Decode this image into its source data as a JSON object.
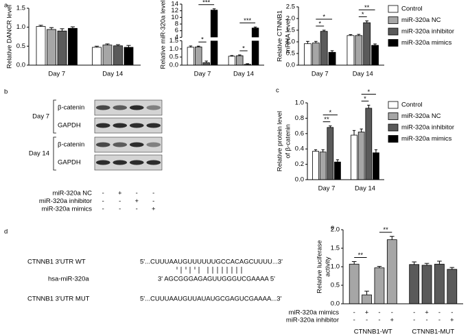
{
  "panel_labels_note_free": null,
  "chart_data": [
    {
      "type": "bar",
      "panel": "a",
      "ylabel": "Relative DANCR level",
      "categories": [
        "Day 7",
        "Day 14"
      ],
      "series": [
        {
          "color": "#ffffff",
          "values": [
            1.02,
            0.47
          ],
          "errors": [
            0.03,
            0.03
          ]
        },
        {
          "color": "#a6a6a6",
          "values": [
            0.94,
            0.53
          ],
          "errors": [
            0.05,
            0.03
          ]
        },
        {
          "color": "#5a5a5a",
          "values": [
            0.9,
            0.51
          ],
          "errors": [
            0.06,
            0.03
          ]
        },
        {
          "color": "#000000",
          "values": [
            0.97,
            0.47
          ],
          "errors": [
            0.04,
            0.05
          ]
        }
      ],
      "ylim": [
        0,
        1.5
      ],
      "yticks": [
        {
          "value": 0,
          "label": "0.0"
        },
        0.5,
        {
          "value": 1,
          "label": "1.0"
        },
        1.5
      ]
    },
    {
      "type": "bar",
      "ylabel": "Relative miR-320a level",
      "categories": [
        "Day 7",
        "Day 14"
      ],
      "series": [
        {
          "color": "#ffffff",
          "values": [
            1.1,
            0.55
          ],
          "errors": [
            0.08,
            0.04
          ]
        },
        {
          "color": "#a6a6a6",
          "values": [
            1.12,
            0.58
          ],
          "errors": [
            0.05,
            0.05
          ]
        },
        {
          "color": "#5a5a5a",
          "values": [
            0.15,
            0.05
          ],
          "errors": [
            0.1,
            0.04
          ]
        },
        {
          "color": "#000000",
          "values": [
            12.2,
            6.8
          ],
          "errors": [
            0.4,
            0.3
          ]
        }
      ],
      "ysegments": [
        {
          "ylim": [
            0,
            1.5
          ],
          "yticks": [
            {
              "value": 0,
              "label": "0.0"
            },
            0.5,
            {
              "value": 1,
              "label": "1.0"
            },
            1.5
          ]
        },
        {
          "ylim": [
            4,
            14
          ],
          "yticks": [
            4,
            6,
            8,
            10,
            12,
            14
          ]
        }
      ],
      "annotations": [
        {
          "text": "*",
          "category": 0,
          "from": 1,
          "to": 2
        },
        {
          "text": "***",
          "category": 0,
          "from": 1,
          "to": 3
        },
        {
          "text": "*",
          "category": 1,
          "from": 1,
          "to": 2
        },
        {
          "text": "***",
          "category": 1,
          "from": 1,
          "to": 3
        }
      ]
    },
    {
      "type": "bar",
      "ylabel": [
        "Relative CTNNB1",
        "mRNA level"
      ],
      "categories": [
        "Day 7",
        "Day 14"
      ],
      "series": [
        {
          "name": "Control",
          "color": "#ffffff",
          "values": [
            0.92,
            1.27
          ],
          "errors": [
            0.1,
            0.04
          ]
        },
        {
          "name": "miR-320a NC",
          "color": "#a6a6a6",
          "values": [
            0.95,
            1.27
          ],
          "errors": [
            0.07,
            0.05
          ]
        },
        {
          "name": "miR-320a inhibitor",
          "color": "#5a5a5a",
          "values": [
            1.45,
            1.82
          ],
          "errors": [
            0.05,
            0.08
          ]
        },
        {
          "name": "miR-320a mimics",
          "color": "#000000",
          "values": [
            0.55,
            0.85
          ],
          "errors": [
            0.07,
            0.06
          ]
        }
      ],
      "ylim": [
        0,
        2.5
      ],
      "yticks": [
        {
          "value": 0,
          "label": "0.0"
        },
        0.5,
        {
          "value": 1,
          "label": "1.0"
        },
        1.5,
        {
          "value": 2,
          "label": "2.0"
        },
        2.5
      ],
      "legend": "right",
      "annotations": [
        {
          "text": "*",
          "category": 0,
          "from": 1,
          "to": 2
        },
        {
          "text": "*",
          "category": 0,
          "from": 1,
          "to": 3
        },
        {
          "text": "*",
          "category": 1,
          "from": 1,
          "to": 2
        },
        {
          "text": "**",
          "category": 1,
          "from": 1,
          "to": 3
        }
      ]
    },
    {
      "type": "bar",
      "panel": "c",
      "ylabel": [
        "Relative protein level",
        "of β-catenin"
      ],
      "categories": [
        "Day 7",
        "Day 14"
      ],
      "series": [
        {
          "name": "Control",
          "color": "#ffffff",
          "values": [
            0.37,
            0.58
          ],
          "errors": [
            0.02,
            0.06
          ]
        },
        {
          "name": "miR-320a NC",
          "color": "#a6a6a6",
          "values": [
            0.36,
            0.62
          ],
          "errors": [
            0.03,
            0.04
          ]
        },
        {
          "name": "miR-320a inhibitor",
          "color": "#5a5a5a",
          "values": [
            0.68,
            0.93
          ],
          "errors": [
            0.02,
            0.04
          ]
        },
        {
          "name": "miR-320a mimics",
          "color": "#000000",
          "values": [
            0.23,
            0.35
          ],
          "errors": [
            0.03,
            0.04
          ]
        }
      ],
      "ylim": [
        0,
        1
      ],
      "yticks": [
        {
          "value": 0,
          "label": "0.0"
        },
        0.2,
        0.4,
        0.6,
        0.8,
        {
          "value": 1,
          "label": "1.0"
        }
      ],
      "legend": "right",
      "annotations": [
        {
          "text": "**",
          "category": 0,
          "from": 1,
          "to": 2
        },
        {
          "text": "*",
          "category": 0,
          "from": 1,
          "to": 3
        },
        {
          "text": "*",
          "category": 1,
          "from": 1,
          "to": 2
        },
        {
          "text": "*",
          "category": 1,
          "from": 1,
          "to": 3
        }
      ]
    },
    {
      "type": "bar",
      "panel": "e",
      "ylabel": [
        "Relative luciferase",
        "activity"
      ],
      "ylim": [
        0,
        2
      ],
      "yticks": [
        {
          "value": 0,
          "label": "0.0"
        },
        0.5,
        {
          "value": 1,
          "label": "1.0"
        },
        1.5,
        {
          "value": 2,
          "label": "2.0"
        }
      ],
      "groups": [
        {
          "name": "CTNNB1-WT",
          "color": "#a6a6a6",
          "values": [
            1.07,
            0.24,
            0.97,
            1.73
          ],
          "errors": [
            0.07,
            0.1,
            0.04,
            0.09
          ]
        },
        {
          "name": "CTNNB1-MUT",
          "color": "#5a5a5a",
          "values": [
            1.06,
            1.04,
            1.07,
            0.93
          ],
          "errors": [
            0.07,
            0.05,
            0.08,
            0.05
          ]
        }
      ],
      "treatments": [
        {
          "name": "miR-320a mimics",
          "signs": [
            [
              "-",
              "+",
              "-",
              "-"
            ],
            [
              "-",
              "+",
              "-",
              "-"
            ]
          ]
        },
        {
          "name": "miR-320a inhibitor",
          "signs": [
            [
              "-",
              "-",
              "-",
              "+"
            ],
            [
              "-",
              "-",
              "-",
              "+"
            ]
          ]
        }
      ],
      "annotations": [
        {
          "text": "**",
          "group": 0,
          "from": 0,
          "to": 1
        },
        {
          "text": "**",
          "group": 0,
          "from": 2,
          "to": 3
        }
      ]
    }
  ],
  "blot": {
    "panel": "b",
    "days": [
      {
        "label": "Day 7",
        "bands": [
          "β-catenin",
          "GAPDH"
        ]
      },
      {
        "label": "Day 14",
        "bands": [
          "β-catenin",
          "GAPDH"
        ]
      }
    ],
    "treatments": [
      {
        "name": "miR-320a NC",
        "signs": [
          "-",
          "+",
          "-",
          "-"
        ]
      },
      {
        "name": "miR-320a inhibitor",
        "signs": [
          "-",
          "-",
          "+",
          "-"
        ]
      },
      {
        "name": "miR-320a mimics",
        "signs": [
          "-",
          "-",
          "-",
          "+"
        ]
      }
    ]
  },
  "sequence": {
    "panel": "d",
    "rows": [
      {
        "label": "CTNNB1 3'UTR WT",
        "text": "5'...CUUUAAUGUUUUUUGCCACAGCUUUU...3'"
      },
      {
        "label": "hsa-miR-320a",
        "text": "3' AGCGGGAGAGUUGGGUCGAAAA 5'"
      },
      {
        "label": "CTNNB1 3'UTR MUT",
        "text": "5'...CUUUAAUGUUAUAUGCGAGUCGAAAA...3'"
      }
    ]
  }
}
